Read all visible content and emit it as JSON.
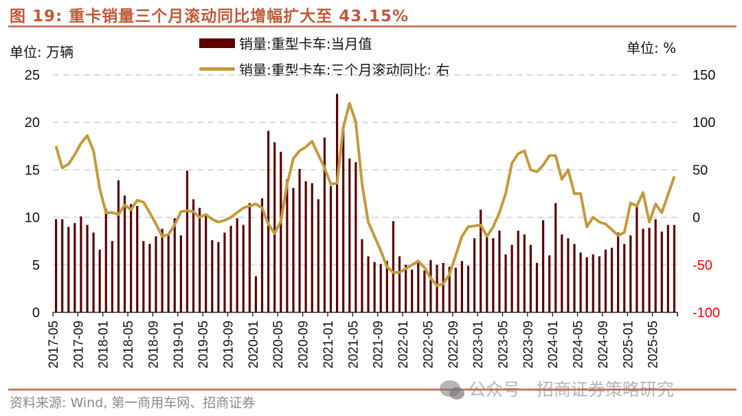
{
  "header": {
    "title": "图 19:  重卡销量三个月滚动同比增幅扩大至 43.15%"
  },
  "units": {
    "left": "单位:  万辆",
    "right": "单位:  %"
  },
  "footer": {
    "source": "资料来源:  Wind,  第一商用车网、招商证券",
    "watermark": "公众号 · 招商证券策略研究"
  },
  "colors": {
    "bar": "#5c0000",
    "line": "#c49a3a",
    "title": "#c0593a",
    "negative_tick": "#ff0000",
    "grid": "#d9d9d9"
  },
  "chart_data": {
    "type": "bar+line",
    "title": "重卡销量三个月滚动同比增幅扩大至 43.15%",
    "xlabel": "",
    "ylabel_left": "单位:  万辆",
    "ylabel_right": "单位:  %",
    "ylim_left": [
      0,
      25
    ],
    "ylim_right": [
      -100,
      150
    ],
    "yticks_left": [
      "0",
      "5",
      "10",
      "15",
      "20",
      "25"
    ],
    "yticks_right": [
      "-100",
      "-50",
      "0",
      "50",
      "100",
      "150"
    ],
    "grid": true,
    "legend_position": "top-center",
    "x_start": "2017-05",
    "x_tick_labels": [
      "2017-05",
      "2017-09",
      "2018-01",
      "2018-05",
      "2018-09",
      "2019-01",
      "2019-05",
      "2019-09",
      "2020-01",
      "2020-05",
      "2020-09",
      "2021-01",
      "2021-05",
      "2021-09",
      "2022-01",
      "2022-05",
      "2022-09",
      "2023-01",
      "2023-05",
      "2023-09",
      "2024-01",
      "2024-05",
      "2024-09",
      "2025-01",
      "2025-05"
    ],
    "series": [
      {
        "name": "销量:重型卡车:当月值",
        "type": "bar",
        "axis": "left",
        "values": [
          9.8,
          9.8,
          9.0,
          9.4,
          10.1,
          9.2,
          8.4,
          6.6,
          10.9,
          7.5,
          13.9,
          12.3,
          11.4,
          11.2,
          7.5,
          7.2,
          8.0,
          8.8,
          8.2,
          9.9,
          8.1,
          14.9,
          11.9,
          11.0,
          10.4,
          7.6,
          7.4,
          8.4,
          9.1,
          9.9,
          9.2,
          11.5,
          3.8,
          12.0,
          19.1,
          17.9,
          16.9,
          14.0,
          13.1,
          15.1,
          13.8,
          13.6,
          11.9,
          18.4,
          13.3,
          23.0,
          19.4,
          16.2,
          15.8,
          7.7,
          5.9,
          5.3,
          5.1,
          5.4,
          9.6,
          5.9,
          5.0,
          4.5,
          5.3,
          4.4,
          5.5,
          5.0,
          5.2,
          4.8,
          4.7,
          5.4,
          4.9,
          7.8,
          10.8,
          8.3,
          7.8,
          8.6,
          6.1,
          7.1,
          8.6,
          8.2,
          7.1,
          5.2,
          9.7,
          6.0,
          11.5,
          8.2,
          7.8,
          7.2,
          6.3,
          5.8,
          6.1,
          5.9,
          6.6,
          6.8,
          8.4,
          7.2,
          8.1,
          11.1,
          8.8,
          8.9,
          9.8,
          8.5,
          9.2,
          9.2
        ]
      },
      {
        "name": "销量:重型卡车:三个月滚动同比:  右",
        "type": "line",
        "axis": "right",
        "values": [
          75,
          52,
          56,
          66,
          78,
          86,
          70,
          30,
          5,
          5,
          3,
          13,
          8,
          18,
          16,
          5,
          -7,
          -20,
          -18,
          -8,
          6,
          7,
          6,
          0,
          3,
          -2,
          -5,
          -3,
          0,
          5,
          10,
          12,
          14,
          10,
          -7,
          -17,
          -4,
          35,
          62,
          70,
          74,
          80,
          66,
          52,
          35,
          36,
          95,
          120,
          100,
          35,
          -5,
          -20,
          -35,
          -52,
          -58,
          -58,
          -54,
          -50,
          -46,
          -53,
          -64,
          -72,
          -70,
          -60,
          -40,
          -20,
          -10,
          -9,
          -8,
          -20,
          -10,
          5,
          25,
          57,
          67,
          70,
          50,
          48,
          55,
          65,
          65,
          40,
          50,
          25,
          25,
          -10,
          0,
          -5,
          -7,
          -13,
          -19,
          -16,
          15,
          12,
          26,
          -5,
          14,
          5,
          24,
          43.15
        ]
      }
    ]
  }
}
